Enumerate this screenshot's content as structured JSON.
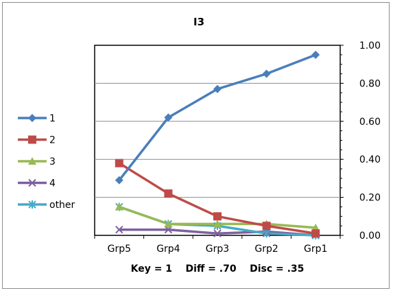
{
  "chart_data": {
    "type": "line",
    "title": "I3",
    "categories": [
      "Grp5",
      "Grp4",
      "Grp3",
      "Grp2",
      "Grp1"
    ],
    "ylim": [
      0,
      1
    ],
    "yticks": [
      "1.00",
      "0.80",
      "0.60",
      "0.40",
      "0.20",
      "0.00"
    ],
    "ytick_values": [
      1.0,
      0.8,
      0.6,
      0.4,
      0.2,
      0.0
    ],
    "y_axis_side": "right",
    "grid": true,
    "legend_position": "left",
    "series": [
      {
        "name": "1",
        "color": "#4a7ebb",
        "marker": "diamond",
        "values": [
          0.29,
          0.62,
          0.77,
          0.85,
          0.95
        ]
      },
      {
        "name": "2",
        "color": "#be4b48",
        "marker": "square",
        "values": [
          0.38,
          0.22,
          0.1,
          0.05,
          0.01
        ]
      },
      {
        "name": "3",
        "color": "#98b954",
        "marker": "triangle",
        "values": [
          0.15,
          0.06,
          0.06,
          0.06,
          0.04
        ]
      },
      {
        "name": "4",
        "color": "#7d60a0",
        "marker": "x",
        "values": [
          0.03,
          0.03,
          0.01,
          0.02,
          0.0
        ]
      },
      {
        "name": "other",
        "color": "#46aac5",
        "marker": "star",
        "values": [
          0.15,
          0.06,
          0.05,
          0.01,
          0.0
        ]
      }
    ],
    "footer": "Key = 1    Diff = .70    Disc = .35"
  }
}
